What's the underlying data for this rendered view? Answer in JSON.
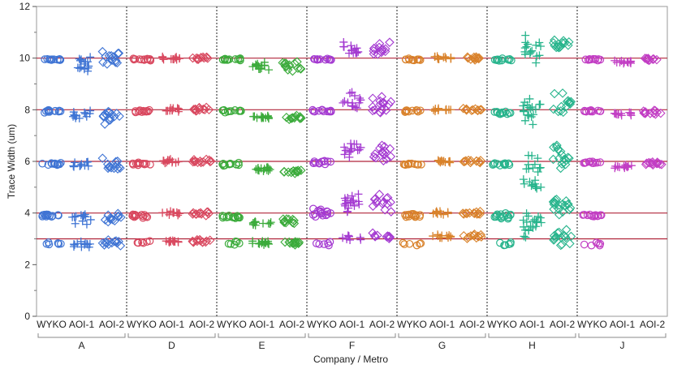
{
  "chart_data": {
    "type": "scatter",
    "subtype": "grouped jitter (variability) plot",
    "xlabel": "Company / Metro",
    "ylabel": "Trace Width (um)",
    "ylim": [
      0,
      12
    ],
    "yticks": [
      0,
      2,
      4,
      6,
      8,
      10,
      12
    ],
    "reference_lines": [
      3,
      4,
      6,
      8,
      10
    ],
    "reference_line_color": "#b0243a",
    "grid": false,
    "legend": "none",
    "groups": [
      {
        "company": "A",
        "color": "#3f74d4"
      },
      {
        "company": "D",
        "color": "#d9485f"
      },
      {
        "company": "E",
        "color": "#3bab3b"
      },
      {
        "company": "F",
        "color": "#a43ad1"
      },
      {
        "company": "G",
        "color": "#d9822b"
      },
      {
        "company": "H",
        "color": "#27b48c"
      },
      {
        "company": "J",
        "color": "#c23ec4"
      }
    ],
    "metros": [
      {
        "name": "WYKO",
        "marker": "circle"
      },
      {
        "name": "AOI-1",
        "marker": "plus"
      },
      {
        "name": "AOI-2",
        "marker": "diamond"
      }
    ],
    "series": [
      {
        "company": "A",
        "metro": "WYKO",
        "levels": [
          {
            "center": 2.8,
            "spread": 0.12,
            "n": 6
          },
          {
            "center": 3.9,
            "spread": 0.1,
            "n": 14
          },
          {
            "center": 5.9,
            "spread": 0.08,
            "n": 12
          },
          {
            "center": 7.95,
            "spread": 0.08,
            "n": 12
          },
          {
            "center": 9.95,
            "spread": 0.06,
            "n": 12
          }
        ]
      },
      {
        "company": "A",
        "metro": "AOI-1",
        "levels": [
          {
            "center": 2.75,
            "spread": 0.22,
            "n": 12
          },
          {
            "center": 3.8,
            "spread": 0.35,
            "n": 12
          },
          {
            "center": 5.85,
            "spread": 0.2,
            "n": 10
          },
          {
            "center": 7.85,
            "spread": 0.3,
            "n": 12
          },
          {
            "center": 9.8,
            "spread": 0.45,
            "n": 14
          }
        ]
      },
      {
        "company": "A",
        "metro": "AOI-2",
        "levels": [
          {
            "center": 2.85,
            "spread": 0.18,
            "n": 12
          },
          {
            "center": 3.8,
            "spread": 0.35,
            "n": 12
          },
          {
            "center": 5.8,
            "spread": 0.35,
            "n": 14
          },
          {
            "center": 7.7,
            "spread": 0.35,
            "n": 14
          },
          {
            "center": 10.0,
            "spread": 0.45,
            "n": 14
          }
        ]
      },
      {
        "company": "D",
        "metro": "WYKO",
        "levels": [
          {
            "center": 2.9,
            "spread": 0.15,
            "n": 6
          },
          {
            "center": 3.9,
            "spread": 0.1,
            "n": 14
          },
          {
            "center": 5.9,
            "spread": 0.08,
            "n": 12
          },
          {
            "center": 7.95,
            "spread": 0.06,
            "n": 12
          },
          {
            "center": 9.95,
            "spread": 0.06,
            "n": 12
          }
        ]
      },
      {
        "company": "D",
        "metro": "AOI-1",
        "levels": [
          {
            "center": 2.9,
            "spread": 0.1,
            "n": 12
          },
          {
            "center": 4.0,
            "spread": 0.12,
            "n": 12
          },
          {
            "center": 6.0,
            "spread": 0.1,
            "n": 12
          },
          {
            "center": 8.0,
            "spread": 0.15,
            "n": 12
          },
          {
            "center": 10.0,
            "spread": 0.1,
            "n": 12
          }
        ]
      },
      {
        "company": "D",
        "metro": "AOI-2",
        "levels": [
          {
            "center": 2.9,
            "spread": 0.1,
            "n": 12
          },
          {
            "center": 4.0,
            "spread": 0.12,
            "n": 12
          },
          {
            "center": 6.0,
            "spread": 0.1,
            "n": 12
          },
          {
            "center": 8.0,
            "spread": 0.15,
            "n": 12
          },
          {
            "center": 10.0,
            "spread": 0.1,
            "n": 12
          }
        ]
      },
      {
        "company": "E",
        "metro": "WYKO",
        "levels": [
          {
            "center": 2.8,
            "spread": 0.15,
            "n": 6
          },
          {
            "center": 3.85,
            "spread": 0.1,
            "n": 14
          },
          {
            "center": 5.9,
            "spread": 0.1,
            "n": 12
          },
          {
            "center": 7.95,
            "spread": 0.08,
            "n": 12
          },
          {
            "center": 9.95,
            "spread": 0.06,
            "n": 12
          }
        ]
      },
      {
        "company": "E",
        "metro": "AOI-1",
        "levels": [
          {
            "center": 2.85,
            "spread": 0.12,
            "n": 14
          },
          {
            "center": 3.6,
            "spread": 0.2,
            "n": 12
          },
          {
            "center": 5.7,
            "spread": 0.12,
            "n": 14
          },
          {
            "center": 7.7,
            "spread": 0.1,
            "n": 14
          },
          {
            "center": 9.7,
            "spread": 0.25,
            "n": 14
          }
        ]
      },
      {
        "company": "E",
        "metro": "AOI-2",
        "levels": [
          {
            "center": 2.85,
            "spread": 0.12,
            "n": 12
          },
          {
            "center": 3.7,
            "spread": 0.2,
            "n": 12
          },
          {
            "center": 5.6,
            "spread": 0.12,
            "n": 12
          },
          {
            "center": 7.7,
            "spread": 0.12,
            "n": 12
          },
          {
            "center": 9.7,
            "spread": 0.25,
            "n": 14
          }
        ]
      },
      {
        "company": "F",
        "metro": "WYKO",
        "levels": [
          {
            "center": 2.8,
            "spread": 0.15,
            "n": 6
          },
          {
            "center": 4.0,
            "spread": 0.3,
            "n": 16
          },
          {
            "center": 5.95,
            "spread": 0.1,
            "n": 12
          },
          {
            "center": 7.95,
            "spread": 0.1,
            "n": 12
          },
          {
            "center": 9.95,
            "spread": 0.06,
            "n": 12
          }
        ]
      },
      {
        "company": "F",
        "metro": "AOI-1",
        "levels": [
          {
            "center": 3.0,
            "spread": 0.2,
            "n": 8
          },
          {
            "center": 4.3,
            "spread": 0.6,
            "n": 18
          },
          {
            "center": 6.4,
            "spread": 0.5,
            "n": 14
          },
          {
            "center": 8.3,
            "spread": 0.5,
            "n": 14
          },
          {
            "center": 10.3,
            "spread": 0.45,
            "n": 14
          }
        ]
      },
      {
        "company": "F",
        "metro": "AOI-2",
        "levels": [
          {
            "center": 3.1,
            "spread": 0.15,
            "n": 10
          },
          {
            "center": 4.3,
            "spread": 0.6,
            "n": 14
          },
          {
            "center": 6.3,
            "spread": 0.6,
            "n": 14
          },
          {
            "center": 8.2,
            "spread": 0.55,
            "n": 16
          },
          {
            "center": 10.3,
            "spread": 0.45,
            "n": 14
          }
        ]
      },
      {
        "company": "G",
        "metro": "WYKO",
        "levels": [
          {
            "center": 2.8,
            "spread": 0.12,
            "n": 6
          },
          {
            "center": 3.9,
            "spread": 0.1,
            "n": 14
          },
          {
            "center": 5.9,
            "spread": 0.08,
            "n": 12
          },
          {
            "center": 7.95,
            "spread": 0.06,
            "n": 12
          },
          {
            "center": 9.95,
            "spread": 0.06,
            "n": 12
          }
        ]
      },
      {
        "company": "G",
        "metro": "AOI-1",
        "levels": [
          {
            "center": 3.1,
            "spread": 0.12,
            "n": 12
          },
          {
            "center": 4.0,
            "spread": 0.1,
            "n": 12
          },
          {
            "center": 6.0,
            "spread": 0.08,
            "n": 12
          },
          {
            "center": 8.0,
            "spread": 0.1,
            "n": 12
          },
          {
            "center": 10.0,
            "spread": 0.12,
            "n": 12
          }
        ]
      },
      {
        "company": "G",
        "metro": "AOI-2",
        "levels": [
          {
            "center": 3.1,
            "spread": 0.12,
            "n": 12
          },
          {
            "center": 4.0,
            "spread": 0.1,
            "n": 12
          },
          {
            "center": 6.0,
            "spread": 0.08,
            "n": 12
          },
          {
            "center": 8.0,
            "spread": 0.1,
            "n": 12
          },
          {
            "center": 10.0,
            "spread": 0.12,
            "n": 12
          }
        ]
      },
      {
        "company": "H",
        "metro": "WYKO",
        "levels": [
          {
            "center": 2.8,
            "spread": 0.12,
            "n": 6
          },
          {
            "center": 3.9,
            "spread": 0.2,
            "n": 16
          },
          {
            "center": 5.9,
            "spread": 0.1,
            "n": 12
          },
          {
            "center": 7.9,
            "spread": 0.1,
            "n": 12
          },
          {
            "center": 9.95,
            "spread": 0.06,
            "n": 12
          }
        ]
      },
      {
        "company": "H",
        "metro": "AOI-1",
        "levels": [
          {
            "center": 3.5,
            "spread": 0.6,
            "n": 20
          },
          {
            "center": 5.5,
            "spread": 1.1,
            "n": 22
          },
          {
            "center": 8.0,
            "spread": 0.9,
            "n": 18
          },
          {
            "center": 10.3,
            "spread": 0.7,
            "n": 16
          }
        ]
      },
      {
        "company": "H",
        "metro": "AOI-2",
        "levels": [
          {
            "center": 3.0,
            "spread": 0.5,
            "n": 16
          },
          {
            "center": 4.4,
            "spread": 0.7,
            "n": 18
          },
          {
            "center": 6.2,
            "spread": 0.7,
            "n": 16
          },
          {
            "center": 8.3,
            "spread": 0.8,
            "n": 14
          },
          {
            "center": 10.5,
            "spread": 0.4,
            "n": 14
          }
        ]
      },
      {
        "company": "J",
        "metro": "WYKO",
        "levels": [
          {
            "center": 2.8,
            "spread": 0.12,
            "n": 6
          },
          {
            "center": 3.9,
            "spread": 0.08,
            "n": 12
          },
          {
            "center": 5.95,
            "spread": 0.08,
            "n": 12
          },
          {
            "center": 7.95,
            "spread": 0.06,
            "n": 12
          },
          {
            "center": 9.95,
            "spread": 0.06,
            "n": 12
          }
        ]
      },
      {
        "company": "J",
        "metro": "AOI-1",
        "levels": [
          {
            "center": 5.8,
            "spread": 0.12,
            "n": 12
          },
          {
            "center": 7.85,
            "spread": 0.12,
            "n": 12
          },
          {
            "center": 9.85,
            "spread": 0.12,
            "n": 12
          }
        ]
      },
      {
        "company": "J",
        "metro": "AOI-2",
        "levels": [
          {
            "center": 5.9,
            "spread": 0.12,
            "n": 12
          },
          {
            "center": 7.9,
            "spread": 0.12,
            "n": 12
          },
          {
            "center": 9.95,
            "spread": 0.1,
            "n": 12
          }
        ]
      }
    ]
  }
}
